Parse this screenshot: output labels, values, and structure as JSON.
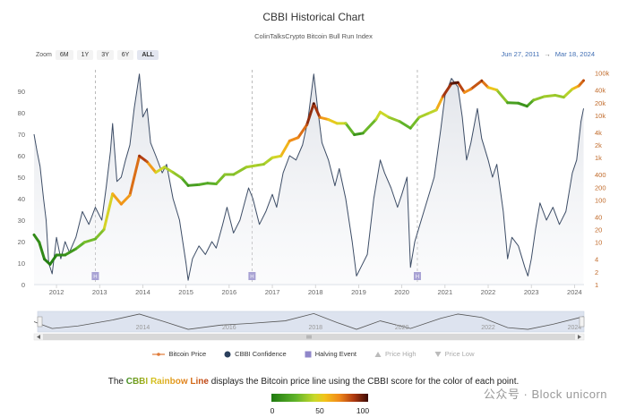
{
  "header": {
    "title": "CBBI Historical Chart",
    "subtitle": "ColinTalksCrypto Bitcoin Bull Run Index"
  },
  "zoom": {
    "label": "Zoom",
    "buttons": [
      "6M",
      "1Y",
      "3Y",
      "6Y",
      "ALL"
    ],
    "active": "ALL"
  },
  "date_range": {
    "from": "Jun 27, 2011",
    "arrow": "→",
    "to": "Mar 18, 2024"
  },
  "legend": [
    {
      "label": "Bitcoin Price",
      "symbol": "line-dot",
      "color": "#e07b39"
    },
    {
      "label": "CBBI Confidence",
      "symbol": "circle",
      "color": "#2a3f5c"
    },
    {
      "label": "Halving Event",
      "symbol": "square",
      "color": "#8f86c9"
    },
    {
      "label": "Price High",
      "symbol": "triangle-up",
      "color": "#aaaaaa"
    },
    {
      "label": "Price Low",
      "symbol": "triangle-down",
      "color": "#aaaaaa"
    }
  ],
  "caption": {
    "pre": "The ",
    "highlight": "CBBI Rainbow Line",
    "post": " displays the Bitcoin price line using the CBBI score for the color of each point."
  },
  "color_scale": {
    "ticks": [
      "0",
      "50",
      "100"
    ],
    "colors": [
      "#1f7a10",
      "#5fb32a",
      "#c9d92a",
      "#f2c31a",
      "#f08a1a",
      "#b03a10",
      "#3b0a05"
    ]
  },
  "watermark": "公众号 · Block unicorn",
  "chart_data": {
    "type": "line",
    "x_ticks": [
      "2012",
      "2013",
      "2014",
      "2015",
      "2016",
      "2017",
      "2018",
      "2019",
      "2020",
      "2021",
      "2022",
      "2023",
      "2024"
    ],
    "x_range": [
      2011.48,
      2024.22
    ],
    "y_left": {
      "ticks": [
        "0",
        "10",
        "20",
        "30",
        "40",
        "50",
        "60",
        "70",
        "80",
        "90"
      ],
      "range": [
        0,
        100
      ]
    },
    "y_right": {
      "scale": "log",
      "ticks": [
        "1",
        "2",
        "4",
        "10",
        "20",
        "40",
        "100",
        "200",
        "400",
        "1k",
        "2k",
        "4k",
        "10k",
        "20k",
        "40k",
        "100k"
      ],
      "range": [
        1,
        120000
      ]
    },
    "halving_markers": [
      {
        "x": 2012.9,
        "label": "H"
      },
      {
        "x": 2016.53,
        "label": "H"
      },
      {
        "x": 2020.36,
        "label": "H"
      }
    ],
    "navigator_labels": [
      "2014",
      "2016",
      "2018",
      "2020",
      "2022",
      "2024"
    ],
    "series": [
      {
        "name": "Bitcoin Price",
        "axis": "right",
        "points": [
          [
            2011.48,
            15,
            6
          ],
          [
            2011.6,
            10,
            10
          ],
          [
            2011.72,
            4,
            3
          ],
          [
            2011.85,
            3,
            1
          ],
          [
            2012.0,
            5,
            6
          ],
          [
            2012.2,
            5,
            8
          ],
          [
            2012.45,
            7,
            18
          ],
          [
            2012.65,
            10,
            32
          ],
          [
            2012.9,
            12,
            25
          ],
          [
            2013.1,
            20,
            38
          ],
          [
            2013.3,
            140,
            58
          ],
          [
            2013.5,
            80,
            70
          ],
          [
            2013.7,
            130,
            62
          ],
          [
            2013.92,
            1100,
            88
          ],
          [
            2014.1,
            800,
            80
          ],
          [
            2014.3,
            450,
            50
          ],
          [
            2014.5,
            600,
            43
          ],
          [
            2014.7,
            450,
            38
          ],
          [
            2014.9,
            330,
            30
          ],
          [
            2015.05,
            220,
            10
          ],
          [
            2015.3,
            230,
            22
          ],
          [
            2015.5,
            250,
            20
          ],
          [
            2015.7,
            240,
            25
          ],
          [
            2015.9,
            400,
            35
          ],
          [
            2016.1,
            400,
            30
          ],
          [
            2016.4,
            600,
            38
          ],
          [
            2016.6,
            650,
            40
          ],
          [
            2016.8,
            700,
            35
          ],
          [
            2017.0,
            1000,
            45
          ],
          [
            2017.2,
            1100,
            50
          ],
          [
            2017.4,
            2500,
            68
          ],
          [
            2017.6,
            3000,
            70
          ],
          [
            2017.8,
            6000,
            80
          ],
          [
            2017.96,
            19000,
            98
          ],
          [
            2018.1,
            9000,
            75
          ],
          [
            2018.3,
            8000,
            55
          ],
          [
            2018.5,
            6500,
            50
          ],
          [
            2018.7,
            6500,
            42
          ],
          [
            2018.9,
            3500,
            10
          ],
          [
            2019.1,
            3800,
            15
          ],
          [
            2019.4,
            8000,
            40
          ],
          [
            2019.5,
            12000,
            50
          ],
          [
            2019.7,
            9000,
            40
          ],
          [
            2019.95,
            7200,
            30
          ],
          [
            2020.2,
            5000,
            20
          ],
          [
            2020.4,
            9000,
            38
          ],
          [
            2020.6,
            11000,
            40
          ],
          [
            2020.8,
            13500,
            45
          ],
          [
            2020.95,
            28000,
            78
          ],
          [
            2021.15,
            57000,
            95
          ],
          [
            2021.3,
            60000,
            98
          ],
          [
            2021.45,
            35000,
            68
          ],
          [
            2021.6,
            42000,
            70
          ],
          [
            2021.85,
            66000,
            90
          ],
          [
            2022.0,
            46000,
            58
          ],
          [
            2022.2,
            40000,
            50
          ],
          [
            2022.45,
            20000,
            18
          ],
          [
            2022.7,
            19500,
            15
          ],
          [
            2022.9,
            16500,
            8
          ],
          [
            2023.05,
            23000,
            30
          ],
          [
            2023.3,
            28000,
            38
          ],
          [
            2023.55,
            30000,
            36
          ],
          [
            2023.75,
            27000,
            35
          ],
          [
            2023.95,
            42000,
            48
          ],
          [
            2024.1,
            50000,
            70
          ],
          [
            2024.21,
            67000,
            82
          ]
        ]
      },
      {
        "name": "CBBI Confidence",
        "axis": "left",
        "values": [
          [
            2011.48,
            70
          ],
          [
            2011.55,
            62
          ],
          [
            2011.62,
            55
          ],
          [
            2011.7,
            40
          ],
          [
            2011.76,
            30
          ],
          [
            2011.82,
            10
          ],
          [
            2011.9,
            5
          ],
          [
            2012.0,
            22
          ],
          [
            2012.1,
            12
          ],
          [
            2012.2,
            20
          ],
          [
            2012.3,
            15
          ],
          [
            2012.45,
            22
          ],
          [
            2012.6,
            34
          ],
          [
            2012.75,
            28
          ],
          [
            2012.9,
            36
          ],
          [
            2013.05,
            30
          ],
          [
            2013.15,
            45
          ],
          [
            2013.25,
            62
          ],
          [
            2013.3,
            75
          ],
          [
            2013.4,
            48
          ],
          [
            2013.5,
            50
          ],
          [
            2013.6,
            58
          ],
          [
            2013.7,
            65
          ],
          [
            2013.8,
            82
          ],
          [
            2013.92,
            98
          ],
          [
            2014.0,
            78
          ],
          [
            2014.1,
            82
          ],
          [
            2014.18,
            66
          ],
          [
            2014.3,
            60
          ],
          [
            2014.45,
            52
          ],
          [
            2014.55,
            56
          ],
          [
            2014.7,
            40
          ],
          [
            2014.85,
            30
          ],
          [
            2015.0,
            10
          ],
          [
            2015.05,
            2
          ],
          [
            2015.15,
            12
          ],
          [
            2015.3,
            18
          ],
          [
            2015.45,
            14
          ],
          [
            2015.6,
            20
          ],
          [
            2015.7,
            17
          ],
          [
            2015.85,
            28
          ],
          [
            2015.95,
            36
          ],
          [
            2016.1,
            24
          ],
          [
            2016.25,
            30
          ],
          [
            2016.45,
            45
          ],
          [
            2016.55,
            40
          ],
          [
            2016.7,
            28
          ],
          [
            2016.85,
            34
          ],
          [
            2017.0,
            42
          ],
          [
            2017.1,
            36
          ],
          [
            2017.25,
            52
          ],
          [
            2017.4,
            60
          ],
          [
            2017.55,
            58
          ],
          [
            2017.7,
            65
          ],
          [
            2017.82,
            76
          ],
          [
            2017.96,
            98
          ],
          [
            2018.05,
            82
          ],
          [
            2018.15,
            66
          ],
          [
            2018.3,
            58
          ],
          [
            2018.45,
            46
          ],
          [
            2018.55,
            54
          ],
          [
            2018.7,
            40
          ],
          [
            2018.85,
            20
          ],
          [
            2018.95,
            4
          ],
          [
            2019.05,
            8
          ],
          [
            2019.2,
            14
          ],
          [
            2019.35,
            40
          ],
          [
            2019.5,
            58
          ],
          [
            2019.6,
            52
          ],
          [
            2019.75,
            45
          ],
          [
            2019.9,
            36
          ],
          [
            2020.0,
            42
          ],
          [
            2020.12,
            50
          ],
          [
            2020.2,
            8
          ],
          [
            2020.3,
            20
          ],
          [
            2020.45,
            30
          ],
          [
            2020.6,
            40
          ],
          [
            2020.75,
            50
          ],
          [
            2020.9,
            72
          ],
          [
            2021.0,
            88
          ],
          [
            2021.15,
            96
          ],
          [
            2021.3,
            92
          ],
          [
            2021.4,
            78
          ],
          [
            2021.5,
            58
          ],
          [
            2021.6,
            66
          ],
          [
            2021.75,
            82
          ],
          [
            2021.85,
            68
          ],
          [
            2022.0,
            58
          ],
          [
            2022.1,
            50
          ],
          [
            2022.2,
            56
          ],
          [
            2022.35,
            34
          ],
          [
            2022.45,
            12
          ],
          [
            2022.55,
            22
          ],
          [
            2022.7,
            18
          ],
          [
            2022.85,
            8
          ],
          [
            2022.92,
            4
          ],
          [
            2023.0,
            12
          ],
          [
            2023.1,
            26
          ],
          [
            2023.2,
            38
          ],
          [
            2023.35,
            30
          ],
          [
            2023.5,
            36
          ],
          [
            2023.65,
            28
          ],
          [
            2023.8,
            34
          ],
          [
            2023.95,
            52
          ],
          [
            2024.05,
            58
          ],
          [
            2024.15,
            76
          ],
          [
            2024.21,
            82
          ]
        ]
      }
    ],
    "navigator_values": [
      [
        2011.48,
        50
      ],
      [
        2011.9,
        10
      ],
      [
        2012.5,
        25
      ],
      [
        2013.3,
        60
      ],
      [
        2013.92,
        95
      ],
      [
        2014.5,
        50
      ],
      [
        2015.05,
        5
      ],
      [
        2015.8,
        30
      ],
      [
        2016.5,
        40
      ],
      [
        2017.3,
        55
      ],
      [
        2017.96,
        98
      ],
      [
        2018.5,
        45
      ],
      [
        2018.95,
        5
      ],
      [
        2019.5,
        55
      ],
      [
        2020.2,
        10
      ],
      [
        2020.9,
        70
      ],
      [
        2021.3,
        95
      ],
      [
        2021.85,
        75
      ],
      [
        2022.45,
        15
      ],
      [
        2022.92,
        5
      ],
      [
        2023.5,
        35
      ],
      [
        2024.21,
        80
      ]
    ]
  }
}
